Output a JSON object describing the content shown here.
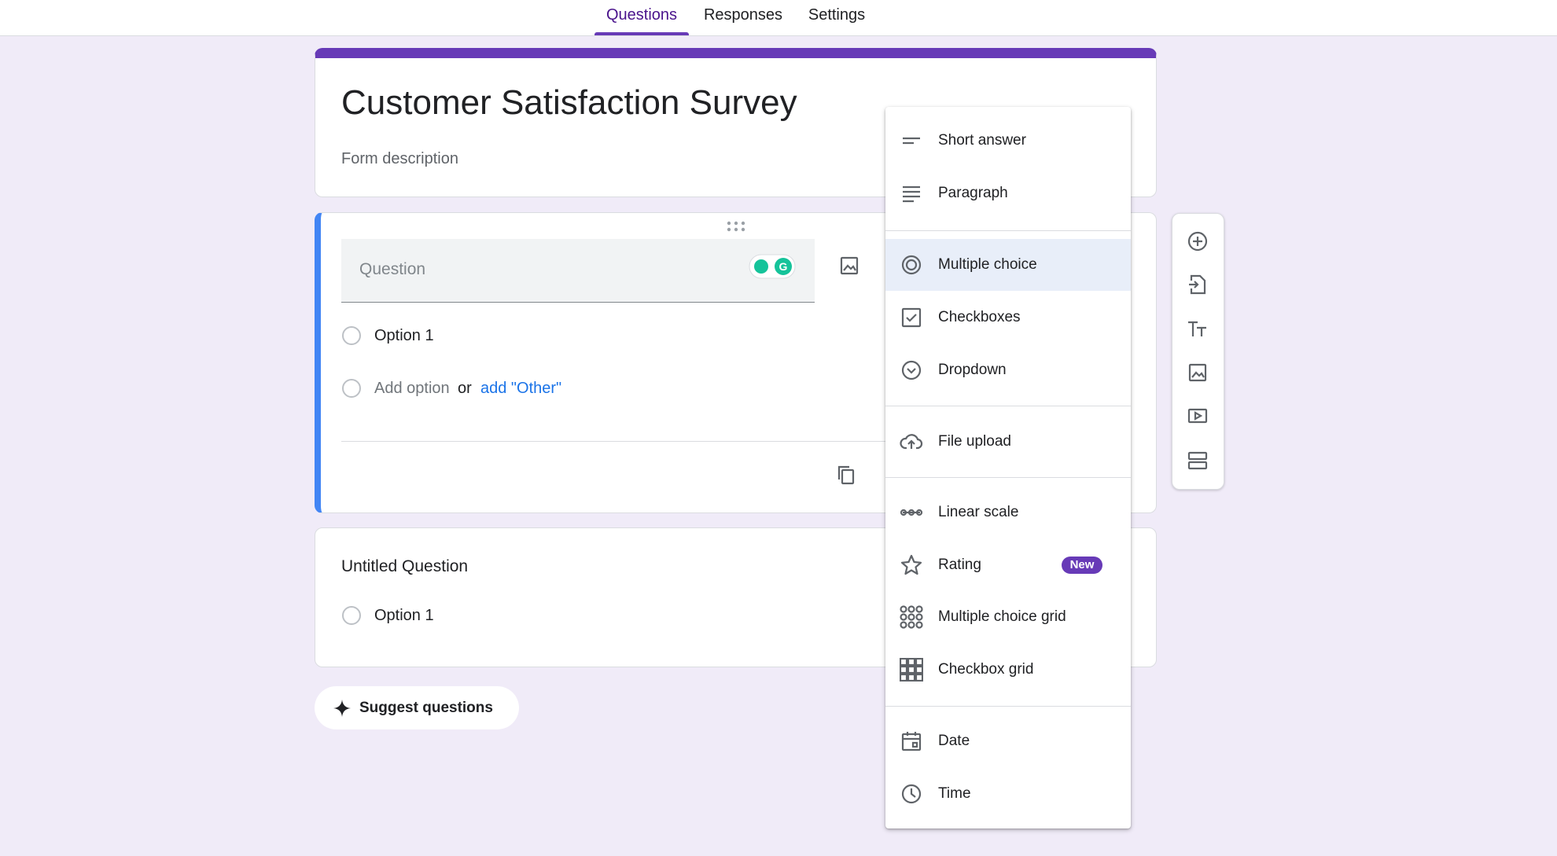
{
  "tabs": [
    "Questions",
    "Responses",
    "Settings"
  ],
  "form": {
    "title": "Customer Satisfaction Survey",
    "description": "Form description"
  },
  "question_card": {
    "placeholder": "Question",
    "options": [
      "Option 1"
    ],
    "add_option": "Add option",
    "or": "or",
    "add_other": "add \"Other\""
  },
  "second_card": {
    "title": "Untitled Question",
    "options": [
      "Option 1"
    ]
  },
  "suggest_button": "Suggest questions",
  "type_menu": {
    "items": [
      {
        "label": "Short answer"
      },
      {
        "label": "Paragraph"
      },
      {
        "label": "Multiple choice"
      },
      {
        "label": "Checkboxes"
      },
      {
        "label": "Dropdown"
      },
      {
        "label": "File upload"
      },
      {
        "label": "Linear scale"
      },
      {
        "label": "Rating",
        "badge": "New"
      },
      {
        "label": "Multiple choice grid"
      },
      {
        "label": "Checkbox grid"
      },
      {
        "label": "Date"
      },
      {
        "label": "Time"
      }
    ]
  }
}
